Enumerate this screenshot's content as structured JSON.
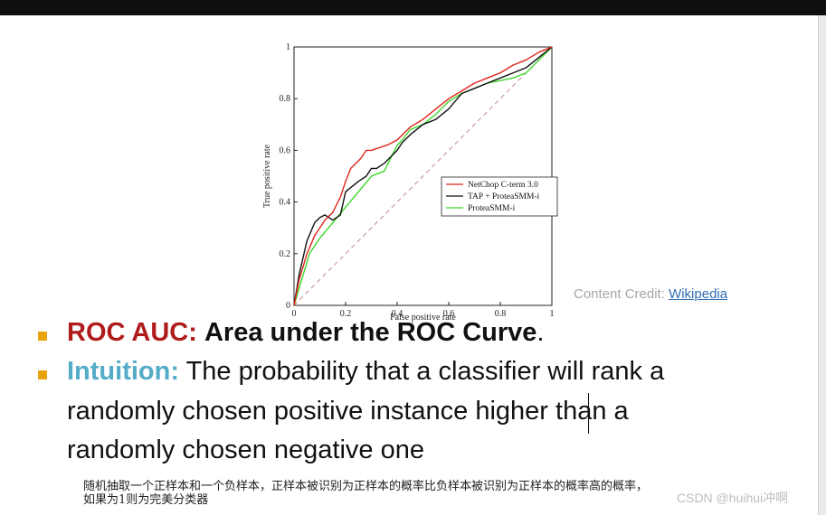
{
  "chart_data": {
    "type": "line",
    "xlabel": "False positive rate",
    "ylabel": "True positive rate",
    "xlim": [
      0,
      1
    ],
    "ylim": [
      0,
      1
    ],
    "xticks": [
      "0",
      "0.2",
      "0.4",
      "0.6",
      "0.8",
      "1"
    ],
    "yticks": [
      "0",
      "0.2",
      "0.4",
      "0.6",
      "0.8",
      "1"
    ],
    "legend_position": "center-right",
    "grid": false,
    "series": [
      {
        "name": "NetChop C-term 3.0",
        "color": "#e0231b",
        "x": [
          0,
          0.02,
          0.05,
          0.08,
          0.1,
          0.12,
          0.15,
          0.18,
          0.2,
          0.22,
          0.24,
          0.26,
          0.28,
          0.3,
          0.33,
          0.36,
          0.4,
          0.42,
          0.45,
          0.5,
          0.55,
          0.6,
          0.65,
          0.7,
          0.75,
          0.8,
          0.85,
          0.9,
          0.95,
          1
        ],
        "y": [
          0,
          0.1,
          0.2,
          0.27,
          0.3,
          0.33,
          0.36,
          0.42,
          0.48,
          0.53,
          0.55,
          0.57,
          0.6,
          0.6,
          0.61,
          0.62,
          0.64,
          0.66,
          0.69,
          0.72,
          0.76,
          0.8,
          0.83,
          0.86,
          0.88,
          0.9,
          0.93,
          0.95,
          0.98,
          1
        ]
      },
      {
        "name": "TAP + ProteaSMM-i",
        "color": "#111111",
        "x": [
          0,
          0.02,
          0.05,
          0.08,
          0.1,
          0.12,
          0.15,
          0.18,
          0.2,
          0.25,
          0.28,
          0.3,
          0.32,
          0.35,
          0.4,
          0.42,
          0.45,
          0.5,
          0.55,
          0.6,
          0.65,
          0.7,
          0.75,
          0.8,
          0.85,
          0.9,
          0.95,
          1
        ],
        "y": [
          0,
          0.12,
          0.25,
          0.32,
          0.34,
          0.35,
          0.33,
          0.35,
          0.44,
          0.48,
          0.5,
          0.53,
          0.53,
          0.55,
          0.6,
          0.63,
          0.66,
          0.7,
          0.72,
          0.76,
          0.82,
          0.84,
          0.86,
          0.88,
          0.9,
          0.92,
          0.96,
          1
        ]
      },
      {
        "name": "ProteaSMM-i",
        "color": "#3fd62e",
        "x": [
          0,
          0.03,
          0.06,
          0.1,
          0.15,
          0.2,
          0.25,
          0.3,
          0.35,
          0.38,
          0.4,
          0.42,
          0.45,
          0.5,
          0.55,
          0.6,
          0.65,
          0.7,
          0.75,
          0.8,
          0.85,
          0.9,
          0.95,
          1
        ],
        "y": [
          0,
          0.1,
          0.2,
          0.26,
          0.32,
          0.38,
          0.44,
          0.5,
          0.52,
          0.58,
          0.62,
          0.64,
          0.68,
          0.7,
          0.74,
          0.79,
          0.82,
          0.84,
          0.86,
          0.87,
          0.88,
          0.9,
          0.95,
          1
        ]
      },
      {
        "name": "",
        "color": "#c98585",
        "dashed": true,
        "x": [
          0,
          1
        ],
        "y": [
          0,
          1
        ]
      }
    ]
  },
  "credit": {
    "label": "Content Credit:",
    "link": "Wikipedia"
  },
  "bullets": [
    {
      "key": "ROC AUC:",
      "bold_text": "Area under the ROC Curve",
      "text": "."
    },
    {
      "key": "Intuition:",
      "line1": "The probability that a classifier will rank a",
      "line2": "randomly chosen positive instance higher than a",
      "line3": "randomly chosen negative one"
    }
  ],
  "note": {
    "line1": "随机抽取一个正样本和一个负样本，正样本被识别为正样本的概率比负样本被识别为正样本的概率高的概率，",
    "line2": "如果为1则为完美分类器"
  },
  "watermark": "CSDN @huihui冲啊",
  "colors": {
    "roc_key": "#b01c1c",
    "intuition_key": "#55acc8",
    "bullet": "#e8a20c",
    "link": "#2f6db5"
  }
}
